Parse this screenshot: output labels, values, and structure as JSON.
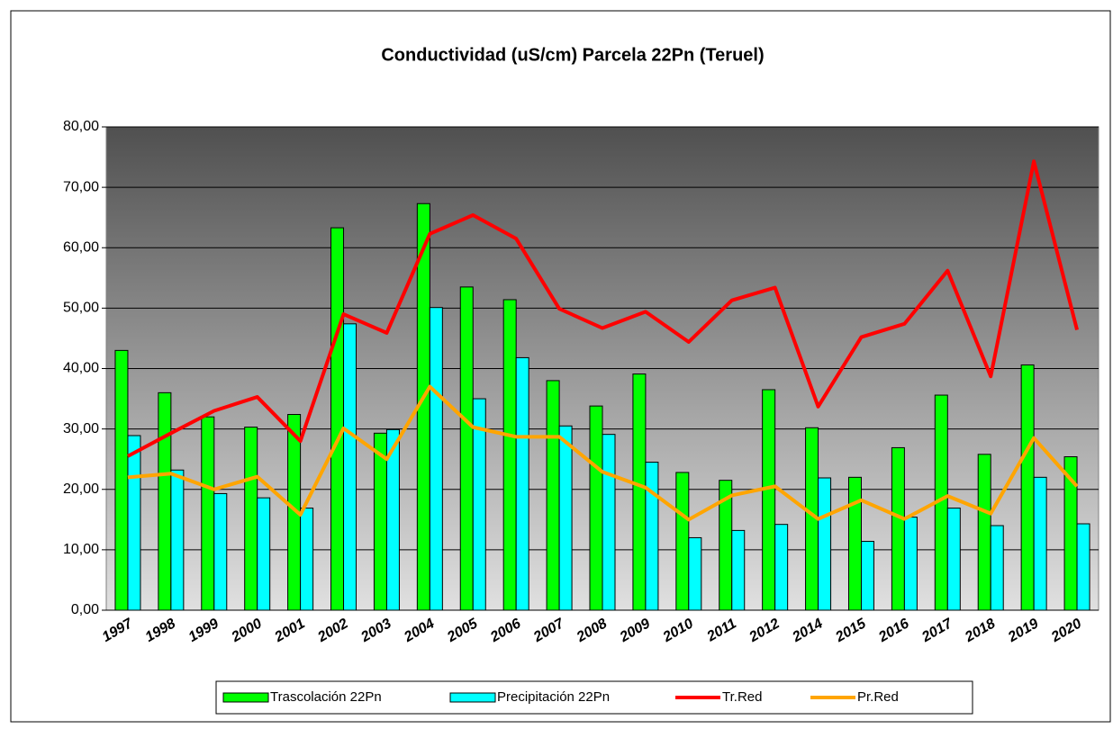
{
  "chart_data": {
    "type": "bar",
    "title": "Conductividad (uS/cm) Parcela 22Pn (Teruel)",
    "categories": [
      "1997",
      "1998",
      "1999",
      "2000",
      "2001",
      "2002",
      "2003",
      "2004",
      "2005",
      "2006",
      "2007",
      "2008",
      "2009",
      "2010",
      "2011",
      "2012",
      "2014",
      "2015",
      "2016",
      "2017",
      "2018",
      "2019",
      "2020"
    ],
    "series": [
      {
        "name": "Trascolación  22Pn",
        "type": "bar",
        "color": "#00ff00",
        "values": [
          43.0,
          36.0,
          32.0,
          30.3,
          32.4,
          63.3,
          29.3,
          67.3,
          53.5,
          51.4,
          38.0,
          33.8,
          39.1,
          22.8,
          21.5,
          36.5,
          30.2,
          22.0,
          26.9,
          35.6,
          25.8,
          40.6,
          25.4
        ]
      },
      {
        "name": "Precipitación 22Pn",
        "type": "bar",
        "color": "#00ffff",
        "values": [
          28.9,
          23.2,
          19.3,
          18.6,
          16.9,
          47.4,
          29.9,
          50.1,
          35.0,
          41.8,
          30.5,
          29.1,
          24.5,
          12.0,
          13.2,
          14.2,
          21.9,
          11.4,
          15.4,
          16.9,
          14.0,
          22.0,
          14.3
        ]
      },
      {
        "name": "Tr.Red",
        "type": "line",
        "color": "#ff0000",
        "values": [
          25.5,
          29.3,
          33.0,
          35.3,
          28.0,
          49.0,
          45.9,
          62.3,
          65.4,
          61.5,
          49.9,
          46.7,
          49.4,
          44.4,
          51.3,
          53.4,
          33.7,
          45.2,
          47.4,
          56.2,
          38.7,
          74.3,
          46.4
        ]
      },
      {
        "name": "Pr.Red",
        "type": "line",
        "color": "#ffa500",
        "values": [
          22.0,
          22.6,
          20.0,
          22.1,
          15.8,
          30.1,
          25.0,
          37.0,
          30.3,
          28.7,
          28.7,
          22.9,
          20.3,
          15.0,
          19.0,
          20.5,
          15.1,
          18.2,
          15.1,
          18.9,
          16.0,
          28.5,
          20.5
        ]
      }
    ],
    "ylim": [
      0,
      80
    ],
    "yticks": [
      {
        "value": 0,
        "label": "0,00"
      },
      {
        "value": 10,
        "label": "10,00"
      },
      {
        "value": 20,
        "label": "20,00"
      },
      {
        "value": 30,
        "label": "30,00"
      },
      {
        "value": 40,
        "label": "40,00"
      },
      {
        "value": 50,
        "label": "50,00"
      },
      {
        "value": 60,
        "label": "60,00"
      },
      {
        "value": 70,
        "label": "70,00"
      },
      {
        "value": 80,
        "label": "80,00"
      }
    ],
    "grid": true,
    "legend": "bottom"
  }
}
